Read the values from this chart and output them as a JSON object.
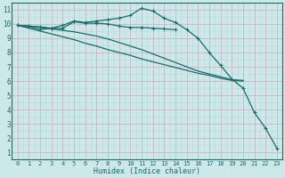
{
  "xlabel": "Humidex (Indice chaleur)",
  "background_color": "#cde8e8",
  "line_color": "#1a6b6b",
  "grid_color_major": "#c8b8c8",
  "grid_color_minor": "#b8d8d8",
  "xlim": [
    -0.5,
    23.5
  ],
  "ylim": [
    0.5,
    11.5
  ],
  "xticks": [
    0,
    1,
    2,
    3,
    4,
    5,
    6,
    7,
    8,
    9,
    10,
    11,
    12,
    13,
    14,
    15,
    16,
    17,
    18,
    19,
    20,
    21,
    22,
    23
  ],
  "yticks": [
    1,
    2,
    3,
    4,
    5,
    6,
    7,
    8,
    9,
    10,
    11
  ],
  "line1_y": [
    9.9,
    9.8,
    9.6,
    9.7,
    9.7,
    10.15,
    10.05,
    10.05,
    10.0,
    9.85,
    9.75,
    9.75,
    9.7,
    9.65,
    9.6,
    null,
    null,
    null,
    null,
    null,
    null,
    null,
    null,
    null
  ],
  "line2_y": [
    9.9,
    9.85,
    9.8,
    9.7,
    9.9,
    10.2,
    10.1,
    10.2,
    10.3,
    10.4,
    10.6,
    11.1,
    10.9,
    10.4,
    10.1,
    9.6,
    9.0,
    8.0,
    7.1,
    6.15,
    5.5,
    3.8,
    2.7,
    1.3
  ],
  "line3_y": [
    9.9,
    9.7,
    9.5,
    9.3,
    9.1,
    8.9,
    8.65,
    8.45,
    8.2,
    8.0,
    7.8,
    7.55,
    7.35,
    7.15,
    6.95,
    6.75,
    6.55,
    6.4,
    6.2,
    6.05,
    6.0,
    null,
    null,
    null
  ],
  "line4_y": [
    9.9,
    9.85,
    9.75,
    9.65,
    9.55,
    9.45,
    9.3,
    9.15,
    8.95,
    8.7,
    8.45,
    8.2,
    7.9,
    7.6,
    7.3,
    7.0,
    6.7,
    6.5,
    6.3,
    6.1,
    6.05,
    null,
    null,
    null
  ]
}
